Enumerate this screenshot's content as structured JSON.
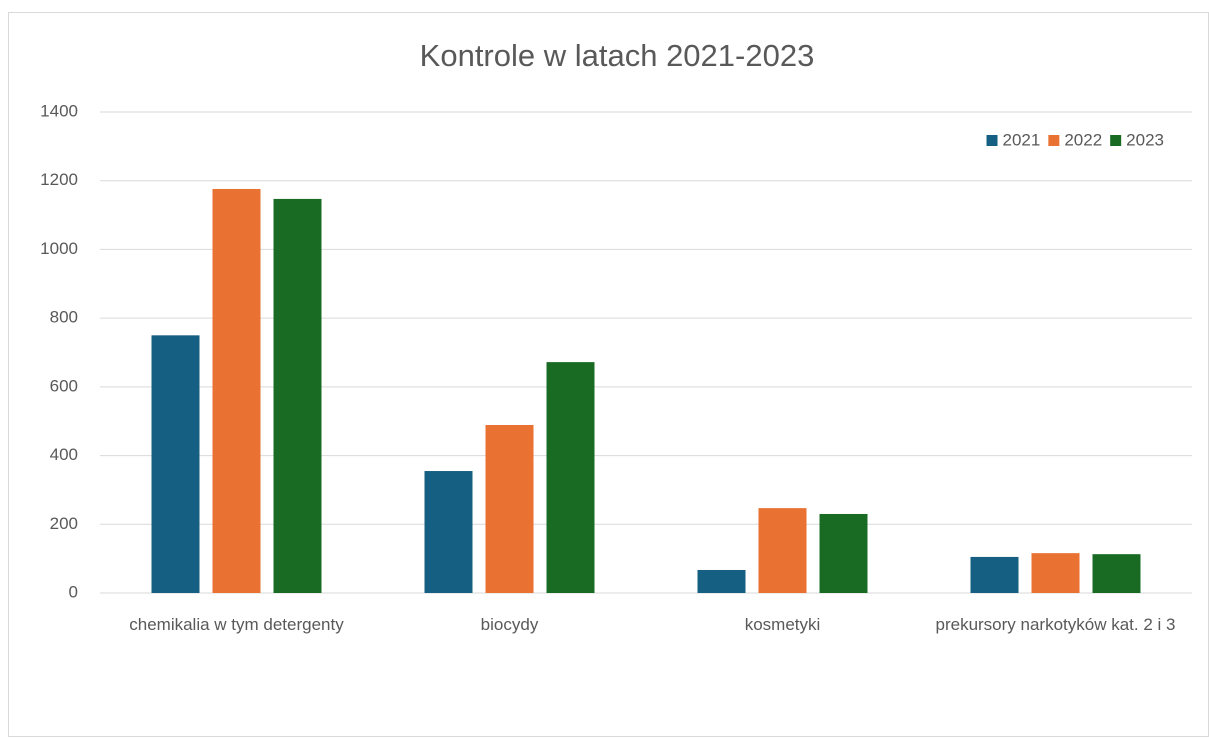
{
  "chart_data": {
    "type": "bar",
    "title": "Kontrole w latach 2021-2023",
    "categories": [
      "chemikalia w tym detergenty",
      "biocydy",
      "kosmetyki",
      "prekursory narkotyków kat. 2 i 3"
    ],
    "series": [
      {
        "name": "2021",
        "color": "#156082",
        "values": [
          750,
          355,
          67,
          105
        ]
      },
      {
        "name": "2022",
        "color": "#e97132",
        "values": [
          1176,
          489,
          247,
          116
        ]
      },
      {
        "name": "2023",
        "color": "#196b24",
        "values": [
          1147,
          672,
          230,
          113
        ]
      }
    ],
    "ylim": [
      0,
      1400
    ],
    "yticks": [
      0,
      200,
      400,
      600,
      800,
      1000,
      1200,
      1400
    ],
    "grid": true,
    "legend": "top-right"
  }
}
